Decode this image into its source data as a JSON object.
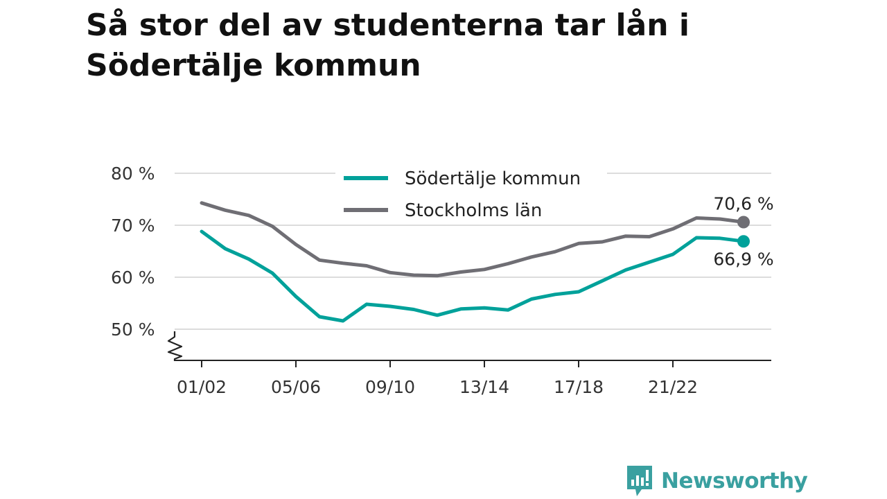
{
  "title": "Så stor del av studenterna tar lån i Södertälje kommun",
  "brand": {
    "name": "Newsworthy",
    "logo_icon": "newsworthy-logo-icon"
  },
  "chart_data": {
    "type": "line",
    "title": "Så stor del av studenterna tar lån i Södertälje kommun",
    "xlabel": "",
    "ylabel": "",
    "ylim": [
      50,
      80
    ],
    "y_ticks": [
      50,
      60,
      70,
      80
    ],
    "y_tick_labels": [
      "50 %",
      "60 %",
      "70 %",
      "80 %"
    ],
    "y_axis_break": true,
    "x": [
      "01/02",
      "02/03",
      "03/04",
      "04/05",
      "05/06",
      "06/07",
      "07/08",
      "08/09",
      "09/10",
      "10/11",
      "11/12",
      "12/13",
      "13/14",
      "14/15",
      "15/16",
      "16/17",
      "17/18",
      "18/19",
      "19/20",
      "20/21",
      "21/22",
      "22/23",
      "23/24",
      "24/25"
    ],
    "x_tick_labels": [
      "01/02",
      "05/06",
      "09/10",
      "13/14",
      "17/18",
      "21/22"
    ],
    "grid": true,
    "legend_position": "top-center",
    "series": [
      {
        "name": "Södertälje kommun",
        "color": "#00a19a",
        "values": [
          68.8,
          65.5,
          63.5,
          60.8,
          56.3,
          52.4,
          51.6,
          54.8,
          54.4,
          53.8,
          52.7,
          53.9,
          54.1,
          53.7,
          55.8,
          56.7,
          57.2,
          59.3,
          61.4,
          62.9,
          64.4,
          67.6,
          67.5,
          66.9
        ],
        "end_label": "66,9 %"
      },
      {
        "name": "Stockholms län",
        "color": "#6f6e74",
        "values": [
          74.3,
          72.9,
          71.9,
          69.8,
          66.3,
          63.3,
          62.7,
          62.2,
          60.9,
          60.4,
          60.3,
          61.0,
          61.5,
          62.6,
          63.9,
          64.9,
          66.5,
          66.8,
          67.9,
          67.8,
          69.3,
          71.4,
          71.2,
          70.6
        ],
        "end_label": "70,6 %"
      }
    ]
  }
}
